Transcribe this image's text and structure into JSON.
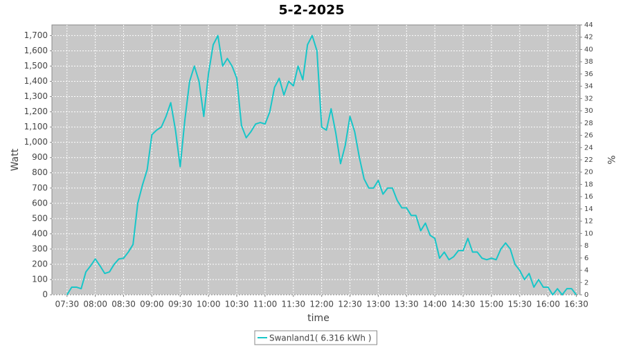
{
  "chart_data": {
    "type": "line",
    "title": "5-2-2025",
    "x_label": "time",
    "y_label": "Watt",
    "y2_label": "%",
    "x": [
      "07:30",
      "07:35",
      "07:40",
      "07:45",
      "07:50",
      "07:55",
      "08:00",
      "08:05",
      "08:10",
      "08:15",
      "08:20",
      "08:25",
      "08:30",
      "08:35",
      "08:40",
      "08:45",
      "08:50",
      "08:55",
      "09:00",
      "09:05",
      "09:10",
      "09:15",
      "09:20",
      "09:25",
      "09:30",
      "09:35",
      "09:40",
      "09:45",
      "09:50",
      "09:55",
      "10:00",
      "10:05",
      "10:10",
      "10:15",
      "10:20",
      "10:25",
      "10:30",
      "10:35",
      "10:40",
      "10:45",
      "10:50",
      "10:55",
      "11:00",
      "11:05",
      "11:10",
      "11:15",
      "11:20",
      "11:25",
      "11:30",
      "11:35",
      "11:40",
      "11:45",
      "11:50",
      "11:55",
      "12:00",
      "12:05",
      "12:10",
      "12:15",
      "12:20",
      "12:25",
      "12:30",
      "12:35",
      "12:40",
      "12:45",
      "12:50",
      "12:55",
      "13:00",
      "13:05",
      "13:10",
      "13:15",
      "13:20",
      "13:25",
      "13:30",
      "13:35",
      "13:40",
      "13:45",
      "13:50",
      "13:55",
      "14:00",
      "14:05",
      "14:10",
      "14:15",
      "14:20",
      "14:25",
      "14:30",
      "14:35",
      "14:40",
      "14:45",
      "14:50",
      "14:55",
      "15:00",
      "15:05",
      "15:10",
      "15:15",
      "15:20",
      "15:25",
      "15:30",
      "15:35",
      "15:40",
      "15:45",
      "15:50",
      "15:55",
      "16:00",
      "16:05",
      "16:10",
      "16:15",
      "16:20",
      "16:25",
      "16:30"
    ],
    "series": [
      {
        "name": "Swanland1( 6.316 kWh )",
        "color": "#17c6c8",
        "values": [
          0,
          50,
          50,
          40,
          150,
          190,
          235,
          190,
          140,
          150,
          200,
          235,
          240,
          280,
          330,
          600,
          720,
          820,
          1050,
          1080,
          1100,
          1170,
          1260,
          1080,
          840,
          1150,
          1400,
          1500,
          1400,
          1170,
          1450,
          1640,
          1700,
          1500,
          1550,
          1500,
          1420,
          1110,
          1030,
          1070,
          1120,
          1130,
          1120,
          1200,
          1360,
          1420,
          1310,
          1400,
          1370,
          1500,
          1410,
          1640,
          1700,
          1600,
          1100,
          1080,
          1220,
          1060,
          860,
          980,
          1170,
          1070,
          900,
          760,
          700,
          700,
          750,
          660,
          700,
          700,
          620,
          570,
          570,
          520,
          520,
          420,
          470,
          390,
          370,
          240,
          280,
          230,
          250,
          290,
          290,
          370,
          280,
          280,
          240,
          230,
          240,
          230,
          300,
          340,
          300,
          200,
          160,
          100,
          140,
          50,
          100,
          50,
          50,
          0,
          40,
          0,
          40,
          40,
          0
        ]
      }
    ],
    "xlim": [
      "07:14",
      "16:34"
    ],
    "xticks": [
      "07:30",
      "08:00",
      "08:30",
      "09:00",
      "09:30",
      "10:00",
      "10:30",
      "11:00",
      "11:30",
      "12:00",
      "12:30",
      "13:00",
      "13:30",
      "14:00",
      "14:30",
      "15:00",
      "15:30",
      "16:00",
      "16:30"
    ],
    "ylim": [
      0,
      1770
    ],
    "yticks": [
      0,
      100,
      200,
      300,
      400,
      500,
      600,
      700,
      800,
      900,
      {
        "value": 1000,
        "label": "1,000"
      },
      {
        "value": 1100,
        "label": "1,100"
      },
      {
        "value": 1200,
        "label": "1,200"
      },
      {
        "value": 1300,
        "label": "1,300"
      },
      {
        "value": 1400,
        "label": "1,400"
      },
      {
        "value": 1500,
        "label": "1,500"
      },
      {
        "value": 1600,
        "label": "1,600"
      },
      {
        "value": 1700,
        "label": "1,700"
      }
    ],
    "y2lim": [
      0,
      44
    ],
    "y2ticks": [
      0,
      2,
      4,
      6,
      8,
      10,
      12,
      14,
      16,
      18,
      20,
      22,
      24,
      26,
      28,
      30,
      32,
      34,
      36,
      38,
      40,
      42,
      44
    ],
    "grid": true,
    "plot_background": "#c8c8c8",
    "legend": "bottom"
  }
}
